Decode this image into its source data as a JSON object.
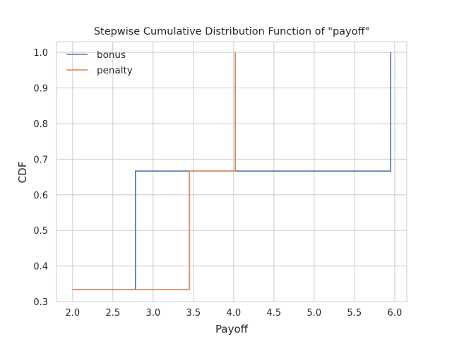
{
  "chart_data": {
    "type": "line",
    "title": "Stepwise Cumulative Distribution Function of \"payoff\"",
    "xlabel": "Payoff",
    "ylabel": "CDF",
    "xlim": [
      1.8,
      6.15
    ],
    "ylim": [
      0.3,
      1.03
    ],
    "xticks": [
      2.0,
      2.5,
      3.0,
      3.5,
      4.0,
      4.5,
      5.0,
      5.5,
      6.0
    ],
    "xtick_labels": [
      "2.0",
      "2.5",
      "3.0",
      "3.5",
      "4.0",
      "4.5",
      "5.0",
      "5.5",
      "6.0"
    ],
    "yticks": [
      0.3,
      0.4,
      0.5,
      0.6,
      0.7,
      0.8,
      0.9,
      1.0
    ],
    "ytick_labels": [
      "0.3",
      "0.4",
      "0.5",
      "0.6",
      "0.7",
      "0.8",
      "0.9",
      "1.0"
    ],
    "grid": true,
    "legend_position": "top-left",
    "series": [
      {
        "name": "bonus",
        "color": "#4c72b0",
        "x": [
          2.0,
          2.78,
          2.78,
          5.95,
          5.95
        ],
        "y": [
          0.3333,
          0.3333,
          0.6667,
          0.6667,
          1.0
        ]
      },
      {
        "name": "penalty",
        "color": "#dd8452",
        "x": [
          2.0,
          3.45,
          3.45,
          4.02,
          4.02
        ],
        "y": [
          0.3333,
          0.3333,
          0.6667,
          0.6667,
          1.0
        ]
      }
    ]
  }
}
